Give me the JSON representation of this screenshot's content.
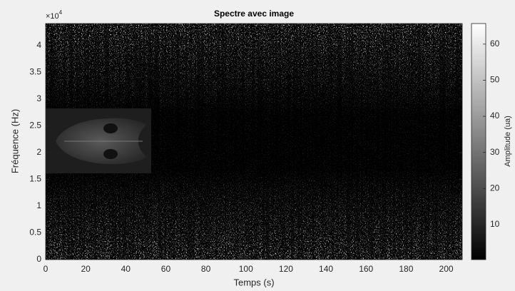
{
  "chart_data": {
    "type": "spectrogram",
    "title": "Spectre avec image",
    "xlabel": "Temps (s)",
    "ylabel": "Fréquence (Hz)",
    "y_multiplier": {
      "base": "×10",
      "exponent": "4"
    },
    "xlim": [
      0,
      208
    ],
    "xticks": [
      0,
      20,
      40,
      60,
      80,
      100,
      120,
      140,
      160,
      180,
      200
    ],
    "ylim": [
      0,
      44100
    ],
    "yticks": [
      0,
      {
        "value": 5000,
        "label": "0.5"
      },
      {
        "value": 10000,
        "label": "1"
      },
      {
        "value": 15000,
        "label": "1.5"
      },
      {
        "value": 20000,
        "label": "2"
      },
      {
        "value": 25000,
        "label": "2.5"
      },
      {
        "value": 30000,
        "label": "3"
      },
      {
        "value": 35000,
        "label": "3.5"
      },
      {
        "value": 40000,
        "label": "4"
      }
    ],
    "colorbar": {
      "label": "Amplitude (ua)",
      "lim": [
        0.3,
        65.7
      ],
      "ticks": [
        10,
        20,
        30,
        40,
        50,
        60
      ]
    }
  }
}
